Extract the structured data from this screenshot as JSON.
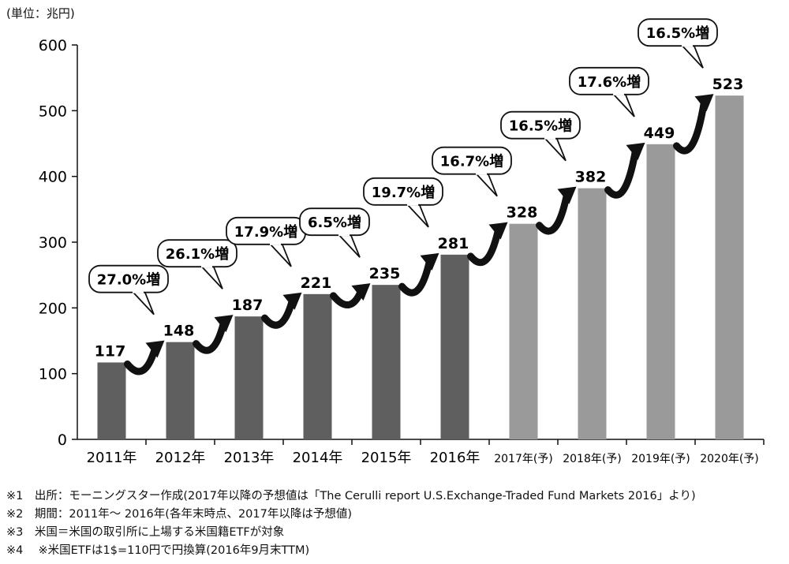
{
  "chart_data": {
    "type": "bar",
    "unit_label": "(単位：兆円)",
    "categories": [
      "2011年",
      "2012年",
      "2013年",
      "2014年",
      "2015年",
      "2016年",
      "2017年(予)",
      "2018年(予)",
      "2019年(予)",
      "2020年(予)"
    ],
    "values": [
      117,
      148,
      187,
      221,
      235,
      281,
      328,
      382,
      449,
      523
    ],
    "value_labels": [
      "117",
      "148",
      "187",
      "221",
      "235",
      "281",
      "328",
      "382",
      "449",
      "523"
    ],
    "forecast": [
      false,
      false,
      false,
      false,
      false,
      false,
      true,
      true,
      true,
      true
    ],
    "growth_labels": [
      "27.0%増",
      "26.1%増",
      "17.9%増",
      "6.5%増",
      "19.7%増",
      "16.7%増",
      "16.5%増",
      "17.6%増",
      "16.5%増"
    ],
    "y_ticks": [
      0,
      100,
      200,
      300,
      400,
      500,
      600
    ],
    "ylim": [
      0,
      600
    ],
    "colors": {
      "actual": "#5f5f5f",
      "forecast": "#9a9a9a",
      "arrow": "#111111"
    },
    "grid": false
  },
  "notes": [
    "※1　出所：モーニングスター作成(2017年以降の予想値は「The Cerulli report U.S.Exchange-Traded Fund Markets 2016」より)",
    "※2　期間：2011年～ 2016年(各年末時点、2017年以降は予想値)",
    "※3　米国＝米国の取引所に上場する米国籍ETFが対象",
    "※4　 ※米国ETFは1$=110円で円換算(2016年9月末TTM)"
  ]
}
